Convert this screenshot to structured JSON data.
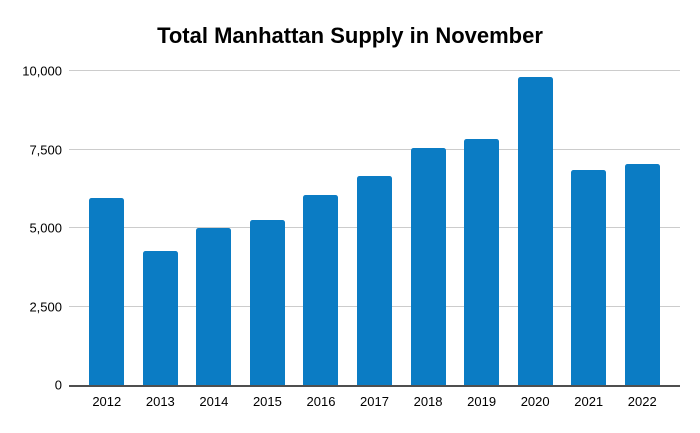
{
  "chart_data": {
    "type": "bar",
    "title": "Total Manhattan Supply in November",
    "categories": [
      "2012",
      "2013",
      "2014",
      "2015",
      "2016",
      "2017",
      "2018",
      "2019",
      "2020",
      "2021",
      "2022"
    ],
    "values": [
      5950,
      4280,
      5000,
      5250,
      6050,
      6670,
      7560,
      7850,
      9810,
      6850,
      7040
    ],
    "xlabel": "",
    "ylabel": "",
    "ylim": [
      0,
      10000
    ],
    "yticks": [
      0,
      2500,
      5000,
      7500,
      10000
    ],
    "ytick_labels": [
      "0",
      "2,500",
      "5,000",
      "7,500",
      "10,000"
    ],
    "grid": true,
    "legend": false,
    "bar_color": "#0b7cc4"
  },
  "colors": {
    "background": "#ffffff",
    "bar": "#0b7cc4",
    "gridline": "#cccccc",
    "baseline": "#4f4f4f",
    "text": "#000000"
  }
}
